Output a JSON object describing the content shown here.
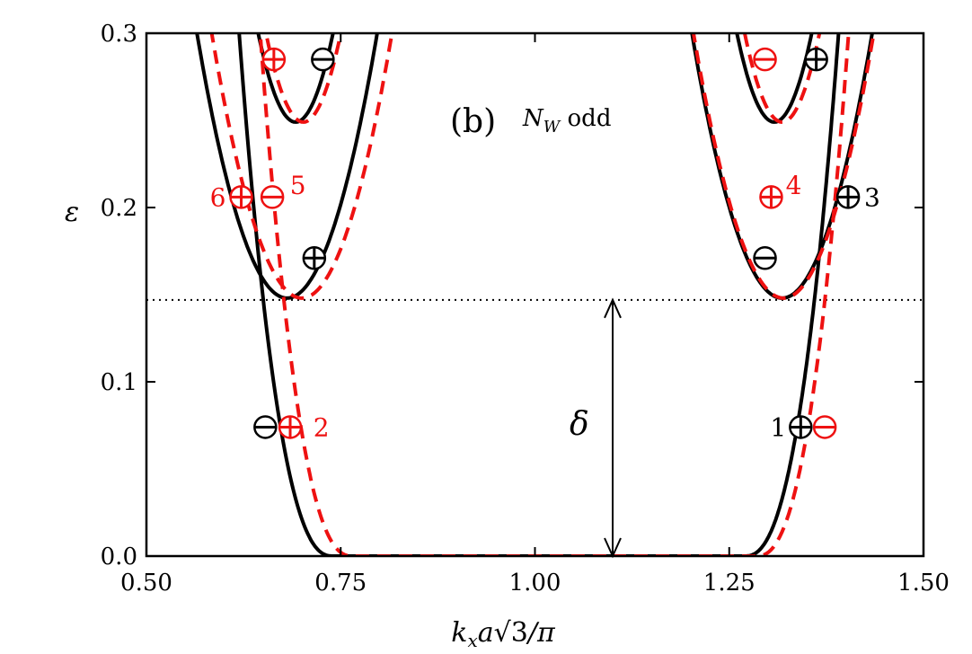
{
  "chart_data": {
    "type": "line",
    "panel_label": "(b)",
    "panel_subtitle_var": "N",
    "panel_subtitle_sub": "W",
    "panel_subtitle_word": " odd",
    "xlabel_parts": [
      "k",
      "x",
      "a",
      "√3",
      "/π"
    ],
    "ylabel": "ε",
    "xlim": [
      0.5,
      1.5
    ],
    "ylim": [
      0.0,
      0.3
    ],
    "xticks": [
      0.5,
      0.75,
      1.0,
      1.25,
      1.5
    ],
    "xtick_labels": [
      "0.50",
      "0.75",
      "1.00",
      "1.25",
      "1.50"
    ],
    "yticks": [
      0.0,
      0.1,
      0.2,
      0.3
    ],
    "ytick_labels": [
      "0.0",
      "0.1",
      "0.2",
      "0.3"
    ],
    "gap_line_y": 0.147,
    "gap_symbol": "δ",
    "gap_arrow_x": 1.1,
    "colors": {
      "black_series": "#000000",
      "red_series": "#ee1111"
    },
    "series": [
      {
        "name": "black band 1 (left)",
        "color": "black",
        "style": "solid",
        "kind": "flat-left",
        "x0": 0.74,
        "c": 48
      },
      {
        "name": "black band 1 (right)",
        "color": "black",
        "style": "solid",
        "kind": "flat-right",
        "x0": 1.27,
        "c": 48
      },
      {
        "name": "black band 2 (left)",
        "color": "black",
        "style": "solid",
        "kind": "parabola",
        "x0": 0.681,
        "y0": 0.148,
        "c": 11.3
      },
      {
        "name": "black band 2 (right)",
        "color": "black",
        "style": "solid",
        "kind": "parabola",
        "x0": 1.318,
        "y0": 0.148,
        "c": 11.3
      },
      {
        "name": "black band 3 (left)",
        "color": "black",
        "style": "solid",
        "kind": "parabola",
        "x0": 0.692,
        "y0": 0.249,
        "c": 22.0
      },
      {
        "name": "black band 3 (right)",
        "color": "black",
        "style": "solid",
        "kind": "parabola",
        "x0": 1.308,
        "y0": 0.249,
        "c": 22.0
      },
      {
        "name": "red band 1 (left)",
        "color": "red",
        "style": "dashed",
        "kind": "flat-left",
        "x0": 0.765,
        "c": 50
      },
      {
        "name": "red band 1 (right)",
        "color": "red",
        "style": "dashed",
        "kind": "flat-right",
        "x0": 1.285,
        "c": 50
      },
      {
        "name": "red band 2 (left)",
        "color": "red",
        "style": "dashed",
        "kind": "parabola",
        "x0": 0.7,
        "y0": 0.148,
        "c": 11.3
      },
      {
        "name": "red band 2 (right)",
        "color": "red",
        "style": "dashed",
        "kind": "parabola",
        "x0": 1.32,
        "y0": 0.148,
        "c": 11.3
      },
      {
        "name": "red band 3 (left)",
        "color": "red",
        "style": "dashed",
        "kind": "parabola",
        "x0": 0.702,
        "y0": 0.249,
        "c": 22.0
      },
      {
        "name": "red band 3 (right)",
        "color": "red",
        "style": "dashed",
        "kind": "parabola",
        "x0": 1.318,
        "y0": 0.249,
        "c": 22.0
      }
    ],
    "markers": [
      {
        "x": 0.653,
        "y": 0.074,
        "sign": "minus",
        "color": "black"
      },
      {
        "x": 0.685,
        "y": 0.074,
        "sign": "plus",
        "color": "red"
      },
      {
        "x": 0.716,
        "y": 0.171,
        "sign": "plus",
        "color": "black"
      },
      {
        "x": 0.662,
        "y": 0.206,
        "sign": "minus",
        "color": "red"
      },
      {
        "x": 0.622,
        "y": 0.206,
        "sign": "plus",
        "color": "red"
      },
      {
        "x": 0.664,
        "y": 0.285,
        "sign": "plus",
        "color": "red"
      },
      {
        "x": 0.727,
        "y": 0.285,
        "sign": "minus",
        "color": "black"
      },
      {
        "x": 1.342,
        "y": 0.074,
        "sign": "plus",
        "color": "black"
      },
      {
        "x": 1.373,
        "y": 0.074,
        "sign": "minus",
        "color": "red"
      },
      {
        "x": 1.296,
        "y": 0.171,
        "sign": "minus",
        "color": "black"
      },
      {
        "x": 1.304,
        "y": 0.206,
        "sign": "plus",
        "color": "red"
      },
      {
        "x": 1.403,
        "y": 0.206,
        "sign": "plus",
        "color": "black"
      },
      {
        "x": 1.296,
        "y": 0.285,
        "sign": "minus",
        "color": "red"
      },
      {
        "x": 1.362,
        "y": 0.285,
        "sign": "plus",
        "color": "black"
      }
    ],
    "annotations": [
      {
        "text": "2",
        "x": 0.725,
        "y": 0.074,
        "color": "red"
      },
      {
        "text": "5",
        "x": 0.695,
        "y": 0.213,
        "color": "red"
      },
      {
        "text": "6",
        "x": 0.592,
        "y": 0.206,
        "color": "red"
      },
      {
        "text": "4",
        "x": 1.333,
        "y": 0.213,
        "color": "red"
      },
      {
        "text": "3",
        "x": 1.434,
        "y": 0.206,
        "color": "black"
      },
      {
        "text": "1",
        "x": 1.313,
        "y": 0.074,
        "color": "black"
      }
    ]
  }
}
